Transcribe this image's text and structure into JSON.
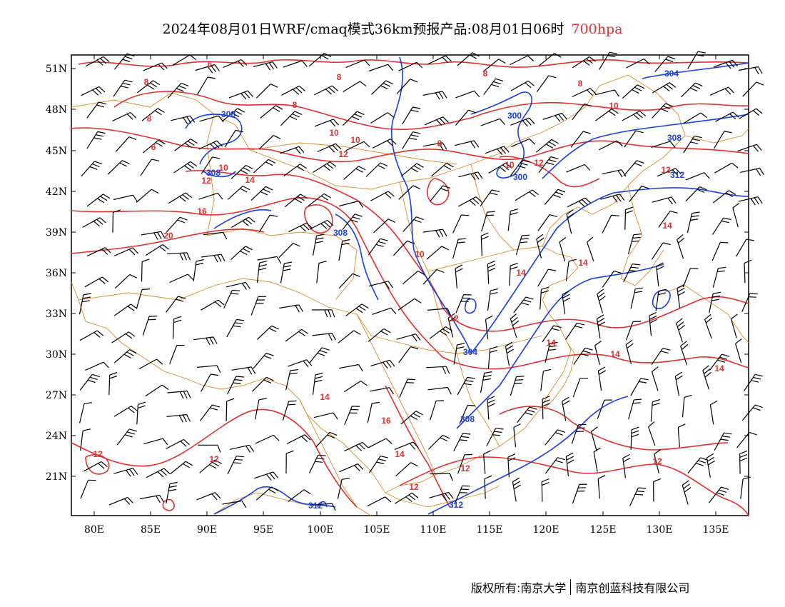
{
  "title": {
    "main": "2024年08月01日WRF/cmaq模式36km预报产品:08月01日06时",
    "level": "700hpa"
  },
  "axes": {
    "lat_ticks": [
      "51N",
      "48N",
      "45N",
      "42N",
      "39N",
      "36N",
      "33N",
      "30N",
      "27N",
      "24N",
      "21N"
    ],
    "lon_ticks": [
      "80E",
      "85E",
      "90E",
      "95E",
      "100E",
      "105E",
      "110E",
      "115E",
      "120E",
      "125E",
      "130E",
      "135E"
    ]
  },
  "contour_labels": {
    "temperature": [
      "6",
      "6",
      "8",
      "8",
      "8",
      "8",
      "8",
      "8",
      "8",
      "10",
      "10",
      "10",
      "10",
      "10",
      "10",
      "12",
      "12",
      "12",
      "12",
      "12",
      "12",
      "12",
      "12",
      "12",
      "12",
      "14",
      "14",
      "14",
      "14",
      "14",
      "14",
      "14",
      "14",
      "14",
      "16",
      "16",
      "20"
    ],
    "height": [
      "304",
      "308",
      "308",
      "308",
      "300",
      "300",
      "308",
      "312",
      "304",
      "308",
      "312",
      "312"
    ]
  },
  "colors": {
    "temperature_contour": "#e03030",
    "height_contour": "#1a3fe0",
    "boundaries": "#d98b2b",
    "wind_barbs": "#000000"
  },
  "credit": {
    "left": "版权所有:南京大学",
    "right": "南京创蓝科技有限公司"
  }
}
